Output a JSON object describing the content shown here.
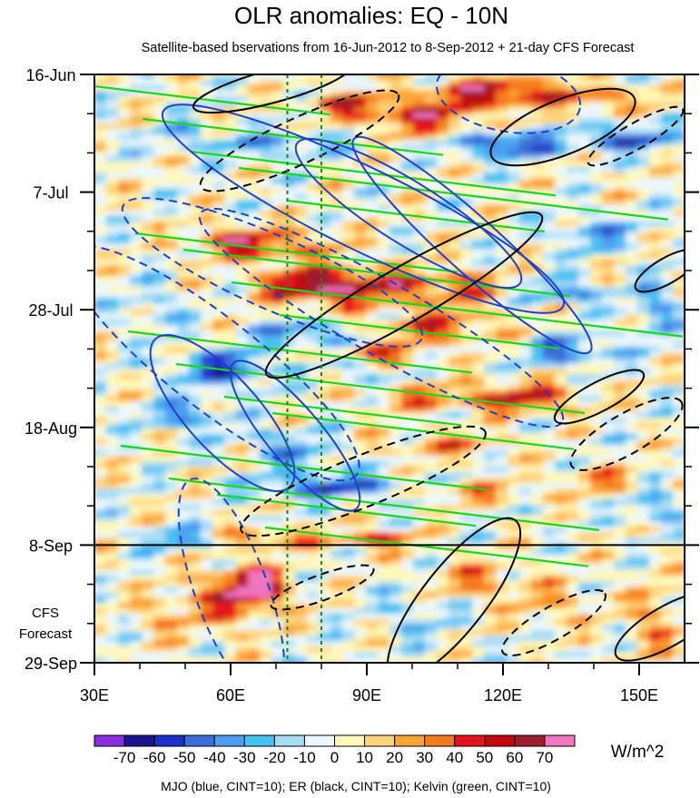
{
  "chart_data": {
    "type": "heatmap",
    "title": "OLR anomalies: EQ - 10N",
    "subtitle": "Satellite-based bservations from 16-Jun-2012 to 8-Sep-2012 + 21-day CFS Forecast",
    "x_axis": {
      "range": [
        30,
        160
      ],
      "tick_values": [
        30,
        60,
        90,
        120,
        150
      ],
      "tick_labels": [
        "30E",
        "60E",
        "90E",
        "120E",
        "150E"
      ]
    },
    "y_axis": {
      "range": [
        "2012-06-16",
        "2012-09-29"
      ],
      "reversed": true,
      "tick_values": [
        "2012-06-16",
        "2012-07-07",
        "2012-07-28",
        "2012-08-18",
        "2012-09-08",
        "2012-09-29"
      ],
      "tick_labels": [
        "16-Jun",
        "7-Jul",
        "28-Jul",
        "18-Aug",
        "8-Sep",
        "29-Sep"
      ]
    },
    "forecast_start": "2012-09-08",
    "forecast_label": [
      "CFS",
      "Forecast"
    ],
    "colorbar": {
      "units": "W/m^2",
      "levels": [
        -70,
        -60,
        -50,
        -40,
        -30,
        -20,
        -10,
        0,
        10,
        20,
        30,
        40,
        50,
        60,
        70
      ],
      "labels": [
        "-70",
        "-60",
        "-50",
        "-40",
        "-30",
        "-20",
        "-10",
        "0",
        "10",
        "20",
        "30",
        "40",
        "50",
        "60",
        "70"
      ],
      "colors": [
        "#8a2be2",
        "#1a148f",
        "#1a30c8",
        "#3a6ed8",
        "#4d9ef0",
        "#49c2f2",
        "#a8dcf5",
        "#eaf7fc",
        "#fff8b8",
        "#fed37a",
        "#fca436",
        "#f57a1c",
        "#e8131a",
        "#c1080f",
        "#9c1e2e",
        "#f075c0"
      ]
    },
    "overlays": [
      {
        "name": "MJO",
        "color": "#1f3fd0",
        "lat_range_note": "blue"
      },
      {
        "name": "ER",
        "color": "#000000"
      },
      {
        "name": "Kelvin",
        "color": "#18d818"
      }
    ],
    "legend_note": "MJO (blue, CINT=10); ER (black, CINT=10); Kelvin (green, CINT=10)",
    "reference_lines_x": [
      72.5,
      80
    ]
  }
}
